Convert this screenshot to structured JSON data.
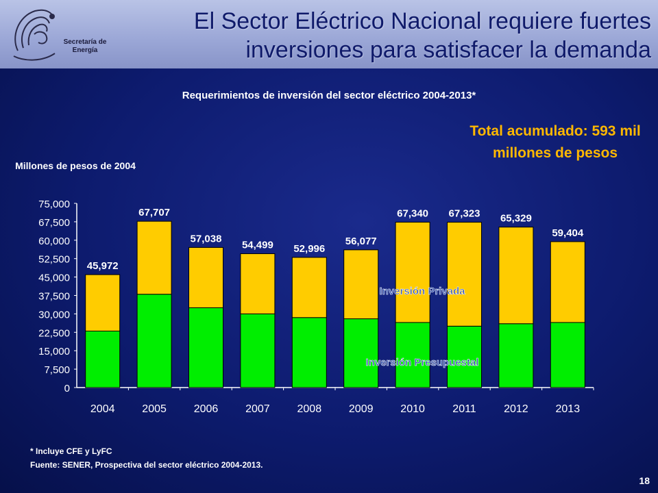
{
  "header": {
    "title": "El Sector Eléctrico Nacional requiere fuertes inversiones para satisfacer la demanda",
    "logo_text": "Secretaría de Energía"
  },
  "subtitle": "Requerimientos de inversión del sector eléctrico 2004-2013*",
  "total_note": "Total acumulado: 593 mil millones de pesos",
  "units_label": "Millones de pesos de 2004",
  "footnote": "* Incluye CFE y LyFC",
  "source": "Fuente: SENER, Prospectiva del sector eléctrico 2004-2013.",
  "page_number": "18",
  "colors": {
    "privada": "#ffcc00",
    "presupuestal": "#00ee00",
    "accent": "#ffb800"
  },
  "chart_data": {
    "type": "bar",
    "stacked": true,
    "categories": [
      "2004",
      "2005",
      "2006",
      "2007",
      "2008",
      "2009",
      "2010",
      "2011",
      "2012",
      "2013"
    ],
    "series": [
      {
        "name": "Inversión Presupuestal",
        "values": [
          23000,
          38000,
          32500,
          30000,
          28500,
          28000,
          26500,
          25000,
          26000,
          26500
        ]
      },
      {
        "name": "Inversión Privada",
        "values": [
          22972,
          29707,
          24538,
          24499,
          24496,
          28077,
          40840,
          42323,
          39329,
          32904
        ]
      }
    ],
    "totals": [
      45972,
      67707,
      57038,
      54499,
      52996,
      56077,
      67340,
      67323,
      65329,
      59404
    ],
    "total_labels": [
      "45,972",
      "67,707",
      "57,038",
      "54,499",
      "52,996",
      "56,077",
      "67,340",
      "67,323",
      "65,329",
      "59,404"
    ],
    "yticks": [
      "0",
      "7,500",
      "15,000",
      "22,500",
      "30,000",
      "37,500",
      "45,000",
      "52,500",
      "60,000",
      "67,500",
      "75,000"
    ],
    "ylim": [
      0,
      75000
    ],
    "grid": false,
    "legend": "in-plot labels"
  }
}
